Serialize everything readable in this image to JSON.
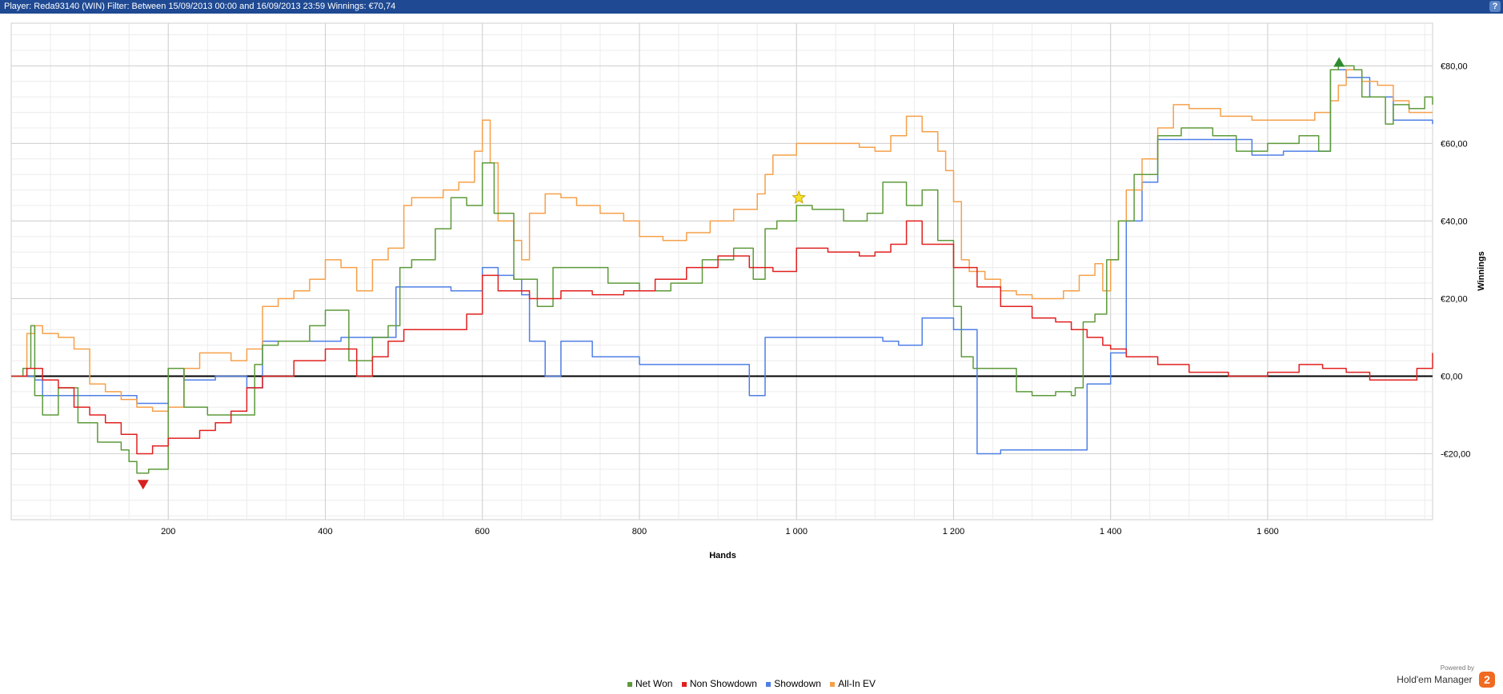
{
  "header": {
    "text": "Player: Reda93140 (WIN)  Filter: Between 15/09/2013 00:00 and 16/09/2013 23:59  Winnings: €70,74",
    "help_label": "?"
  },
  "brand": {
    "powered": "Powered by",
    "name": "Hold'em Manager",
    "logo": "2"
  },
  "colors": {
    "net_won": "#5d9a3a",
    "non_showdown": "#e0201f",
    "showdown": "#4e7fe6",
    "all_in_ev": "#f5a04a",
    "header": "#1f4a93"
  },
  "chart_data": {
    "type": "line",
    "xlabel": "Hands",
    "ylabel": "Winnings",
    "xlim": [
      0,
      1810
    ],
    "ylim": [
      -37,
      91
    ],
    "x_ticks": [
      200,
      400,
      600,
      800,
      1000,
      1200,
      1400,
      1600
    ],
    "x_tick_labels": [
      "200",
      "400",
      "600",
      "800",
      "1 000",
      "1 200",
      "1 400",
      "1 600"
    ],
    "y_ticks": [
      -20,
      0,
      20,
      40,
      60,
      80
    ],
    "y_tick_labels": [
      "-€20,00",
      "€0,00",
      "€20,00",
      "€40,00",
      "€60,00",
      "€80,00"
    ],
    "grid": true,
    "legend_position": "bottom",
    "markers": [
      {
        "type": "triangle-down",
        "x": 168,
        "y": -28,
        "color": "#d62020"
      },
      {
        "type": "triangle-up",
        "x": 1691,
        "y": 81,
        "color": "#2e8b2e"
      },
      {
        "type": "star",
        "x": 1003,
        "y": 46,
        "color": "#f5e22a"
      }
    ],
    "series": [
      {
        "name": "Net Won",
        "color": "#5d9a3a",
        "x": [
          0,
          15,
          25,
          30,
          40,
          60,
          85,
          110,
          140,
          150,
          160,
          175,
          200,
          220,
          250,
          280,
          310,
          320,
          340,
          380,
          400,
          430,
          460,
          480,
          495,
          510,
          540,
          560,
          580,
          600,
          615,
          640,
          670,
          690,
          720,
          760,
          800,
          840,
          880,
          920,
          945,
          960,
          975,
          1000,
          1020,
          1060,
          1090,
          1110,
          1140,
          1160,
          1180,
          1200,
          1210,
          1225,
          1250,
          1280,
          1300,
          1330,
          1350,
          1355,
          1365,
          1380,
          1395,
          1410,
          1430,
          1460,
          1490,
          1530,
          1560,
          1600,
          1640,
          1665,
          1680,
          1690,
          1700,
          1710,
          1720,
          1750,
          1760,
          1780,
          1800,
          1810
        ],
        "y": [
          0,
          2,
          13,
          -5,
          -10,
          -3,
          -12,
          -17,
          -19,
          -22,
          -25,
          -24,
          2,
          -8,
          -10,
          -10,
          3,
          8,
          9,
          13,
          17,
          4,
          10,
          13,
          28,
          30,
          38,
          46,
          44,
          55,
          42,
          25,
          18,
          28,
          28,
          24,
          22,
          24,
          30,
          33,
          25,
          38,
          40,
          44,
          43,
          40,
          42,
          50,
          44,
          48,
          35,
          18,
          5,
          2,
          2,
          -4,
          -5,
          -4,
          -5,
          -3,
          14,
          16,
          30,
          40,
          52,
          62,
          64,
          62,
          58,
          60,
          62,
          58,
          79,
          80,
          80,
          79,
          72,
          65,
          70,
          69,
          72,
          70
        ]
      },
      {
        "name": "Non Showdown",
        "color": "#e0201f",
        "x": [
          0,
          20,
          40,
          60,
          80,
          100,
          120,
          140,
          160,
          180,
          200,
          240,
          260,
          280,
          300,
          320,
          360,
          400,
          440,
          460,
          480,
          500,
          540,
          580,
          600,
          620,
          660,
          700,
          740,
          780,
          820,
          860,
          900,
          940,
          970,
          1000,
          1040,
          1080,
          1100,
          1120,
          1140,
          1160,
          1200,
          1230,
          1260,
          1300,
          1330,
          1350,
          1370,
          1390,
          1400,
          1420,
          1460,
          1500,
          1550,
          1600,
          1640,
          1670,
          1700,
          1730,
          1760,
          1790,
          1810
        ],
        "y": [
          0,
          2,
          -1,
          -3,
          -8,
          -10,
          -12,
          -15,
          -20,
          -18,
          -16,
          -14,
          -12,
          -9,
          -3,
          0,
          4,
          7,
          0,
          5,
          9,
          12,
          12,
          16,
          26,
          22,
          20,
          22,
          21,
          22,
          25,
          28,
          31,
          28,
          27,
          33,
          32,
          31,
          32,
          34,
          40,
          34,
          28,
          23,
          18,
          15,
          14,
          12,
          10,
          8,
          7,
          5,
          3,
          1,
          0,
          1,
          3,
          2,
          1,
          -1,
          -1,
          2,
          6
        ]
      },
      {
        "name": "Showdown",
        "color": "#4e7fe6",
        "x": [
          0,
          20,
          30,
          40,
          100,
          160,
          180,
          200,
          220,
          240,
          260,
          280,
          300,
          320,
          340,
          380,
          420,
          460,
          480,
          490,
          500,
          530,
          560,
          580,
          600,
          620,
          640,
          650,
          660,
          680,
          700,
          740,
          780,
          800,
          820,
          860,
          900,
          920,
          940,
          950,
          960,
          980,
          1000,
          1020,
          1060,
          1090,
          1100,
          1110,
          1130,
          1140,
          1160,
          1180,
          1200,
          1210,
          1230,
          1260,
          1300,
          1340,
          1360,
          1370,
          1390,
          1400,
          1420,
          1440,
          1460,
          1500,
          1540,
          1580,
          1620,
          1660,
          1670,
          1680,
          1700,
          1720,
          1730,
          1760,
          1790,
          1810
        ],
        "y": [
          0,
          0,
          -1,
          -5,
          -5,
          -7,
          -7,
          2,
          -1,
          -1,
          0,
          0,
          -3,
          9,
          9,
          9,
          10,
          10,
          10,
          23,
          23,
          23,
          22,
          22,
          28,
          26,
          25,
          21,
          9,
          0,
          9,
          5,
          5,
          3,
          3,
          3,
          3,
          3,
          -5,
          -5,
          10,
          10,
          10,
          10,
          10,
          10,
          10,
          9,
          8,
          8,
          15,
          15,
          12,
          12,
          -20,
          -19,
          -19,
          -19,
          -19,
          -2,
          -2,
          6,
          40,
          50,
          61,
          61,
          61,
          57,
          58,
          58,
          58,
          79,
          77,
          77,
          72,
          66,
          66,
          65
        ]
      },
      {
        "name": "All-In EV",
        "color": "#f5a04a",
        "x": [
          0,
          20,
          30,
          40,
          60,
          80,
          100,
          120,
          140,
          160,
          180,
          200,
          220,
          240,
          260,
          280,
          300,
          320,
          340,
          360,
          380,
          400,
          420,
          440,
          460,
          480,
          500,
          510,
          530,
          550,
          570,
          590,
          600,
          610,
          620,
          640,
          650,
          660,
          680,
          700,
          720,
          750,
          780,
          800,
          830,
          860,
          890,
          920,
          950,
          960,
          970,
          1000,
          1040,
          1080,
          1100,
          1120,
          1140,
          1160,
          1180,
          1190,
          1200,
          1210,
          1220,
          1240,
          1260,
          1280,
          1300,
          1320,
          1340,
          1360,
          1380,
          1390,
          1400,
          1410,
          1420,
          1440,
          1460,
          1480,
          1500,
          1540,
          1580,
          1620,
          1660,
          1680,
          1690,
          1700,
          1720,
          1740,
          1760,
          1780,
          1810
        ],
        "y": [
          0,
          11,
          13,
          11,
          10,
          7,
          -2,
          -4,
          -6,
          -8,
          -9,
          -8,
          2,
          6,
          6,
          4,
          7,
          18,
          20,
          22,
          25,
          30,
          28,
          22,
          30,
          33,
          44,
          46,
          46,
          48,
          50,
          58,
          66,
          55,
          40,
          35,
          30,
          42,
          47,
          46,
          44,
          42,
          40,
          36,
          35,
          37,
          40,
          43,
          47,
          52,
          57,
          60,
          60,
          59,
          58,
          62,
          67,
          63,
          58,
          53,
          45,
          30,
          27,
          25,
          22,
          21,
          20,
          20,
          22,
          26,
          29,
          22,
          30,
          40,
          48,
          56,
          64,
          70,
          69,
          67,
          66,
          66,
          68,
          71,
          75,
          79,
          76,
          75,
          71,
          68,
          68
        ]
      }
    ]
  },
  "legend": {
    "items": [
      {
        "label": "Net Won"
      },
      {
        "label": "Non Showdown"
      },
      {
        "label": "Showdown"
      },
      {
        "label": "All-In EV"
      }
    ]
  }
}
